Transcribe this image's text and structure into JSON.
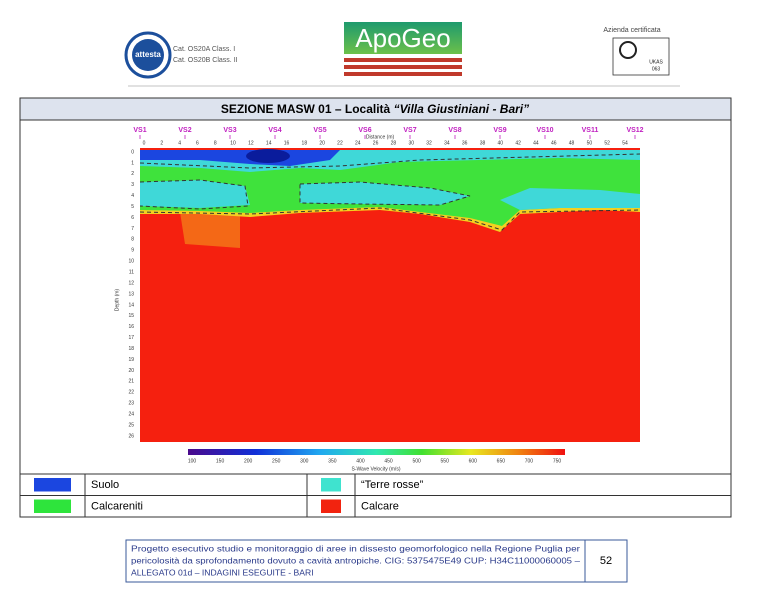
{
  "header": {
    "logo_text": "attesta",
    "accreditation": [
      "Cat. OS20A Class. I",
      "Cat. OS20B Class. II"
    ],
    "brand": "ApoGeo",
    "certification": "Azienda certificata",
    "cert_marks": [
      "UKAS",
      "063"
    ]
  },
  "figure": {
    "title": "SEZIONE MASW 01 – Località ",
    "title_place": "“Villa Giustiniani - Bari”",
    "stations": [
      "VS1",
      "VS2",
      "VS3",
      "VS4",
      "VS5",
      "VS6",
      "VS7",
      "VS8",
      "VS9",
      "VS10",
      "VS11",
      "VS12"
    ],
    "distance_label": "Distance (m)",
    "distance_ticks": [
      0,
      2,
      4,
      6,
      8,
      10,
      12,
      14,
      16,
      18,
      20,
      22,
      24,
      26,
      28,
      30,
      32,
      34,
      36,
      38,
      40,
      42,
      44,
      46,
      48,
      50,
      52,
      54
    ],
    "depth_label": "Depth (m)",
    "depth_ticks": [
      0,
      1,
      2,
      3,
      4,
      5,
      6,
      7,
      8,
      9,
      10,
      11,
      12,
      13,
      14,
      15,
      16,
      17,
      18,
      19,
      20,
      21,
      22,
      23,
      24,
      25,
      26
    ],
    "colorbar_ticks": [
      100,
      150,
      200,
      250,
      300,
      350,
      400,
      450,
      500,
      550,
      600,
      650,
      700,
      750
    ],
    "colorbar_label": "S-Wave Velocity (m/s)"
  },
  "legend": [
    {
      "label": "Suolo",
      "color": "#1b46e0"
    },
    {
      "label": "“Terre rosse”",
      "color": "#3fe3cf"
    },
    {
      "label": "Calcareniti",
      "color": "#2ee43c"
    },
    {
      "label": "Calcare",
      "color": "#f2230f"
    }
  ],
  "footer": {
    "text": [
      "Progetto esecutivo studio e monitoraggio di aree in dissesto geomorfologico nella Regione Puglia per",
      "pericolosità da sprofondamento dovuto a cavità antropiche. CIG: 5375475E49 CUP: H34C11000060005 –",
      "ALLEGATO 01d – INDAGINI ESEGUITE - BARI"
    ],
    "page": 52
  }
}
